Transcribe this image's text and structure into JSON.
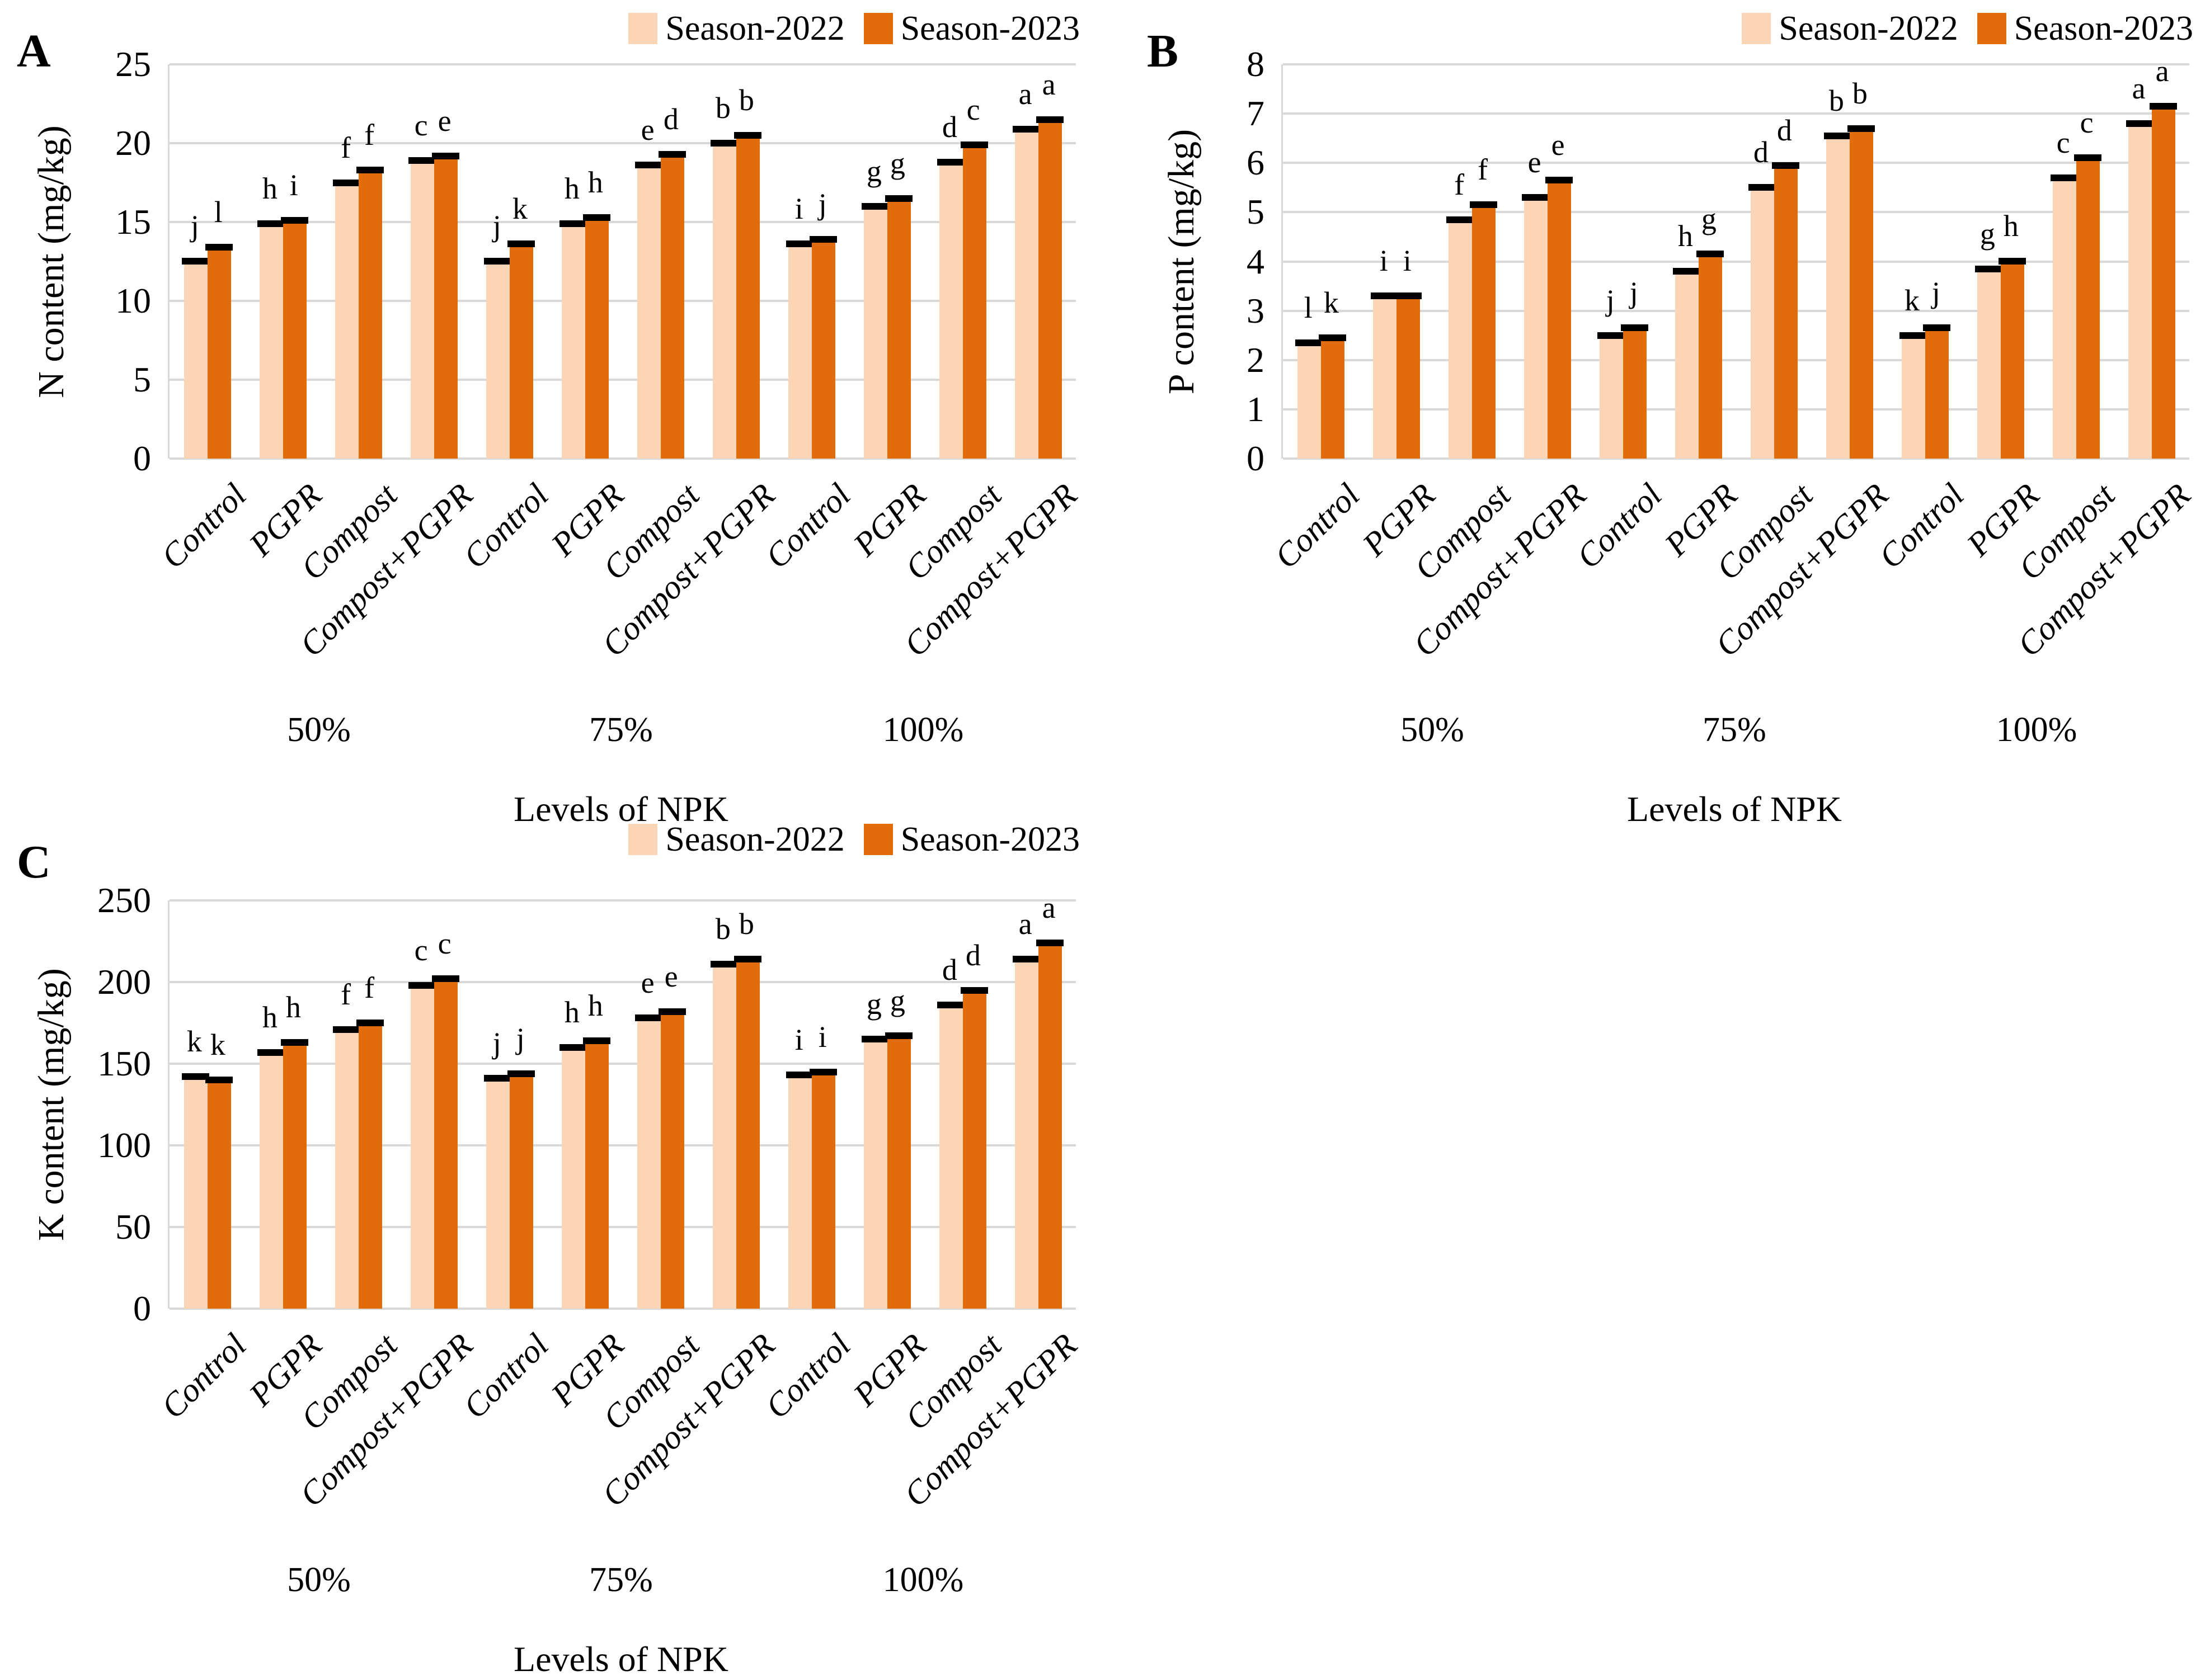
{
  "figure": {
    "series": [
      {
        "name": "Season-2022",
        "color": "#FBD5B5"
      },
      {
        "name": "Season-2023",
        "color": "#E36C0A"
      }
    ],
    "grid_color": "#D9D9D9",
    "text_color": "#000000"
  },
  "chart_data": [
    {
      "type": "bar",
      "panel": "A",
      "ylabel": "N content (mg/kg)",
      "xlabel": "Levels of NPK",
      "ylim": [
        0,
        25
      ],
      "ytick_step": 5,
      "yticks": [
        0,
        5,
        10,
        15,
        20,
        25
      ],
      "grid": true,
      "legend_position": "top-right",
      "legend": [
        "Season-2022",
        "Season-2023"
      ],
      "groups": [
        "50%",
        "75%",
        "100%"
      ],
      "categories": [
        "Control",
        "PGPR",
        "Compost",
        "Compost+PGPR"
      ],
      "data": [
        {
          "group": "50%",
          "rows": [
            {
              "cat": "Control",
              "values": [
                12.5,
                13.4
              ],
              "letters": [
                "j",
                "l"
              ]
            },
            {
              "cat": "PGPR",
              "values": [
                14.9,
                15.1
              ],
              "letters": [
                "h",
                "i"
              ]
            },
            {
              "cat": "Compost",
              "values": [
                17.5,
                18.3
              ],
              "letters": [
                "f",
                "f"
              ]
            },
            {
              "cat": "Compost+PGPR",
              "values": [
                18.9,
                19.2
              ],
              "letters": [
                "c",
                "e"
              ]
            }
          ]
        },
        {
          "group": "75%",
          "rows": [
            {
              "cat": "Control",
              "values": [
                12.5,
                13.6
              ],
              "letters": [
                "j",
                "k"
              ]
            },
            {
              "cat": "PGPR",
              "values": [
                14.9,
                15.3
              ],
              "letters": [
                "h",
                "h"
              ]
            },
            {
              "cat": "Compost",
              "values": [
                18.6,
                19.3
              ],
              "letters": [
                "e",
                "d"
              ]
            },
            {
              "cat": "Compost+PGPR",
              "values": [
                20.0,
                20.5
              ],
              "letters": [
                "b",
                "b"
              ]
            }
          ]
        },
        {
          "group": "100%",
          "rows": [
            {
              "cat": "Control",
              "values": [
                13.6,
                13.9
              ],
              "letters": [
                "i",
                "j"
              ]
            },
            {
              "cat": "PGPR",
              "values": [
                16.0,
                16.5
              ],
              "letters": [
                "g",
                "g"
              ]
            },
            {
              "cat": "Compost",
              "values": [
                18.8,
                19.9
              ],
              "letters": [
                "d",
                "c"
              ]
            },
            {
              "cat": "Compost+PGPR",
              "values": [
                20.9,
                21.5
              ],
              "letters": [
                "a",
                "a"
              ]
            }
          ]
        }
      ]
    },
    {
      "type": "bar",
      "panel": "B",
      "ylabel": "P content (mg/kg)",
      "xlabel": "Levels of NPK",
      "ylim": [
        0,
        8
      ],
      "ytick_step": 1,
      "yticks": [
        0,
        1,
        2,
        3,
        4,
        5,
        6,
        7,
        8
      ],
      "grid": true,
      "legend_position": "top-right",
      "legend": [
        "Season-2022",
        "Season-2023"
      ],
      "groups": [
        "50%",
        "75%",
        "100%"
      ],
      "categories": [
        "Control",
        "PGPR",
        "Compost",
        "Compost+PGPR"
      ],
      "data": [
        {
          "group": "50%",
          "rows": [
            {
              "cat": "Control",
              "values": [
                2.35,
                2.45
              ],
              "letters": [
                "l",
                "k"
              ]
            },
            {
              "cat": "PGPR",
              "values": [
                3.3,
                3.3
              ],
              "letters": [
                "i",
                "i"
              ]
            },
            {
              "cat": "Compost",
              "values": [
                4.85,
                5.15
              ],
              "letters": [
                "f",
                "f"
              ]
            },
            {
              "cat": "Compost+PGPR",
              "values": [
                5.3,
                5.65
              ],
              "letters": [
                "e",
                "e"
              ]
            }
          ]
        },
        {
          "group": "75%",
          "rows": [
            {
              "cat": "Control",
              "values": [
                2.5,
                2.65
              ],
              "letters": [
                "j",
                "j"
              ]
            },
            {
              "cat": "PGPR",
              "values": [
                3.8,
                4.15
              ],
              "letters": [
                "h",
                "g"
              ]
            },
            {
              "cat": "Compost",
              "values": [
                5.5,
                5.95
              ],
              "letters": [
                "d",
                "d"
              ]
            },
            {
              "cat": "Compost+PGPR",
              "values": [
                6.55,
                6.7
              ],
              "letters": [
                "b",
                "b"
              ]
            }
          ]
        },
        {
          "group": "100%",
          "rows": [
            {
              "cat": "Control",
              "values": [
                2.5,
                2.65
              ],
              "letters": [
                "k",
                "j"
              ]
            },
            {
              "cat": "PGPR",
              "values": [
                3.85,
                4.0
              ],
              "letters": [
                "g",
                "h"
              ]
            },
            {
              "cat": "Compost",
              "values": [
                5.7,
                6.1
              ],
              "letters": [
                "c",
                "c"
              ]
            },
            {
              "cat": "Compost+PGPR",
              "values": [
                6.8,
                7.15
              ],
              "letters": [
                "a",
                "a"
              ]
            }
          ]
        }
      ]
    },
    {
      "type": "bar",
      "panel": "C",
      "ylabel": "K content (mg/kg)",
      "xlabel": "Levels of NPK",
      "ylim": [
        0,
        250
      ],
      "ytick_step": 50,
      "yticks": [
        0,
        50,
        100,
        150,
        200,
        250
      ],
      "grid": true,
      "legend_position": "top-right",
      "legend": [
        "Season-2022",
        "Season-2023"
      ],
      "groups": [
        "50%",
        "75%",
        "100%"
      ],
      "categories": [
        "Control",
        "PGPR",
        "Compost",
        "Compost+PGPR"
      ],
      "data": [
        {
          "group": "50%",
          "rows": [
            {
              "cat": "Control",
              "values": [
                142,
                140
              ],
              "letters": [
                "k",
                "k"
              ]
            },
            {
              "cat": "PGPR",
              "values": [
                157,
                163
              ],
              "letters": [
                "h",
                "h"
              ]
            },
            {
              "cat": "Compost",
              "values": [
                171,
                175
              ],
              "letters": [
                "f",
                "f"
              ]
            },
            {
              "cat": "Compost+PGPR",
              "values": [
                198,
                202
              ],
              "letters": [
                "c",
                "c"
              ]
            }
          ]
        },
        {
          "group": "75%",
          "rows": [
            {
              "cat": "Control",
              "values": [
                141,
                144
              ],
              "letters": [
                "j",
                "j"
              ]
            },
            {
              "cat": "PGPR",
              "values": [
                160,
                164
              ],
              "letters": [
                "h",
                "h"
              ]
            },
            {
              "cat": "Compost",
              "values": [
                178,
                182
              ],
              "letters": [
                "e",
                "e"
              ]
            },
            {
              "cat": "Compost+PGPR",
              "values": [
                211,
                214
              ],
              "letters": [
                "b",
                "b"
              ]
            }
          ]
        },
        {
          "group": "100%",
          "rows": [
            {
              "cat": "Control",
              "values": [
                143,
                145
              ],
              "letters": [
                "i",
                "i"
              ]
            },
            {
              "cat": "PGPR",
              "values": [
                165,
                167
              ],
              "letters": [
                "g",
                "g"
              ]
            },
            {
              "cat": "Compost",
              "values": [
                186,
                195
              ],
              "letters": [
                "d",
                "d"
              ]
            },
            {
              "cat": "Compost+PGPR",
              "values": [
                214,
                224
              ],
              "letters": [
                "a",
                "a"
              ]
            }
          ]
        }
      ]
    }
  ]
}
